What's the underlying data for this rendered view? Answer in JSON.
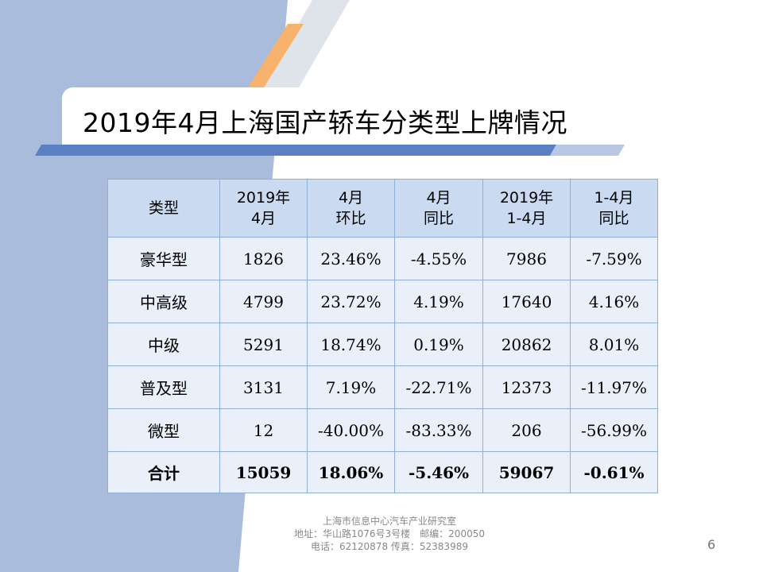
{
  "title": "2019年4月上海国产轿车分类型上牌情况",
  "table": {
    "headers": [
      "类型",
      "2019年\n4月",
      "4月\n环比",
      "4月\n同比",
      "2019年\n1-4月",
      "1-4月\n同比"
    ],
    "rows": [
      [
        "豪华型",
        "1826",
        "23.46%",
        "-4.55%",
        "7986",
        "-7.59%"
      ],
      [
        "中高级",
        "4799",
        "23.72%",
        "4.19%",
        "17640",
        "4.16%"
      ],
      [
        "中级",
        "5291",
        "18.74%",
        "0.19%",
        "20862",
        "8.01%"
      ],
      [
        "普及型",
        "3131",
        "7.19%",
        "-22.71%",
        "12373",
        "-11.97%"
      ],
      [
        "微型",
        "12",
        "-40.00%",
        "-83.33%",
        "206",
        "-56.99%"
      ]
    ],
    "total": [
      "合计",
      "15059",
      "18.06%",
      "-5.46%",
      "59067",
      "-0.61%"
    ]
  },
  "footer": {
    "line1": "上海市信息中心汽车产业研究室",
    "line2": "地址：华山路1076号3号楼　邮编：200050",
    "line3": "电话：62120878  传真：52383989"
  },
  "page_number": "6",
  "colors": {
    "left_band": "#a9bcdc",
    "accent_orange": "#f7b26c",
    "stripe_gray": "#dfe3ea",
    "underline_blue": "#5a7fc2",
    "header_fill": "#c9daf1",
    "cell_fill": "#eaf0f9",
    "grid_line": "#8fb0d6"
  }
}
